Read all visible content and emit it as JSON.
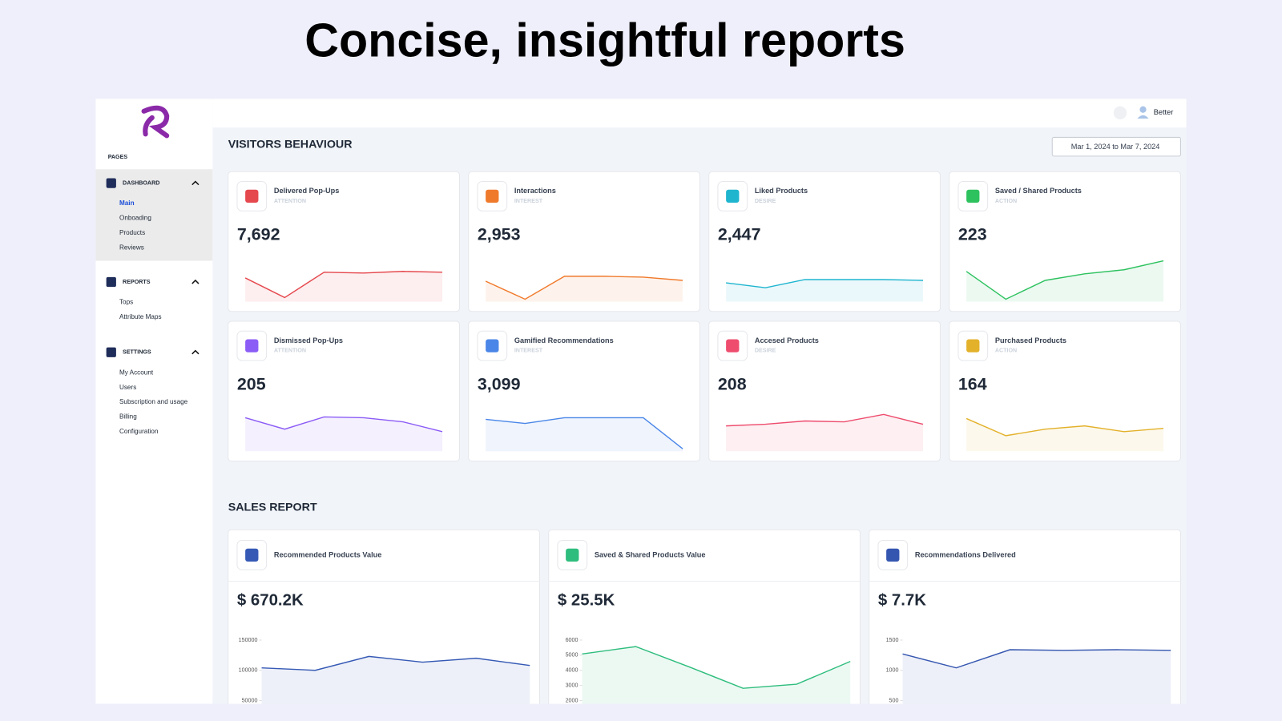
{
  "headline": "Concise, insightful reports",
  "sidebar": {
    "pages_label": "PAGES",
    "sections": [
      {
        "title": "DASHBOARD",
        "items": [
          "Main",
          "Onboading",
          "Products",
          "Reviews"
        ]
      },
      {
        "title": "REPORTS",
        "items": [
          "Tops",
          "Attribute Maps"
        ]
      },
      {
        "title": "SETTINGS",
        "items": [
          "My Account",
          "Users",
          "Subscription and usage",
          "Billing",
          "Configuration"
        ]
      }
    ]
  },
  "topbar": {
    "user": "Better"
  },
  "visitors": {
    "title": "VISITORS BEHAVIOUR",
    "date_range": "Mar 1, 2024 to Mar 7, 2024",
    "cards": [
      {
        "title": "Delivered Pop-Ups",
        "stage": "ATTENTION",
        "value": "7,692",
        "color": "#e5484d",
        "sparkline": [
          29,
          5,
          36,
          35,
          37,
          36
        ]
      },
      {
        "title": "Interactions",
        "stage": "INTEREST",
        "value": "2,953",
        "color": "#f07a2c",
        "sparkline": [
          25,
          3,
          31,
          31,
          30,
          26
        ]
      },
      {
        "title": "Liked Products",
        "stage": "DESIRE",
        "value": "2,447",
        "color": "#1fb5cf",
        "sparkline": [
          23,
          17,
          27,
          27,
          27,
          26
        ]
      },
      {
        "title": "Saved / Shared Products",
        "stage": "ACTION",
        "value": "223",
        "color": "#2ec25f",
        "sparkline": [
          37,
          3,
          26,
          34,
          39,
          50
        ]
      },
      {
        "title": "Dismissed Pop-Ups",
        "stage": "ATTENTION",
        "value": "205",
        "color": "#8b5cf6",
        "sparkline": [
          41,
          27,
          42,
          41,
          36,
          24
        ]
      },
      {
        "title": "Gamified Recommendations",
        "stage": "INTEREST",
        "value": "3,099",
        "color": "#4a86e8",
        "sparkline": [
          39,
          34,
          41,
          41,
          41,
          3
        ]
      },
      {
        "title": "Accesed Products",
        "stage": "DESIRE",
        "value": "208",
        "color": "#ee4d6e",
        "sparkline": [
          31,
          33,
          37,
          36,
          45,
          33
        ]
      },
      {
        "title": "Purchased Products",
        "stage": "ACTION",
        "value": "164",
        "color": "#e3b12a",
        "sparkline": [
          40,
          19,
          27,
          31,
          24,
          28
        ]
      }
    ]
  },
  "sales": {
    "title": "SALES REPORT",
    "cards": [
      {
        "title": "Recommended Products Value",
        "value": "$ 670.2K",
        "color": "#3559b5",
        "chart": {
          "type": "line",
          "ylim": [
            50000,
            150000
          ],
          "yticks": [
            50000,
            100000,
            150000
          ],
          "values": [
            104000,
            100000,
            123000,
            113500,
            120000,
            108000
          ]
        }
      },
      {
        "title": "Saved & Shared Products Value",
        "value": "$ 25.5K",
        "color": "#2ebd7d",
        "chart": {
          "type": "line",
          "ylim": [
            2000,
            6000
          ],
          "yticks": [
            2000,
            3000,
            4000,
            5000,
            6000
          ],
          "values": [
            5080,
            5570,
            4220,
            2810,
            3080,
            4590
          ]
        }
      },
      {
        "title": "Recommendations Delivered",
        "value": "$ 7.7K",
        "color": "#3556b0",
        "chart": {
          "type": "line",
          "ylim": [
            500,
            1500
          ],
          "yticks": [
            500,
            1000,
            1500
          ],
          "values": [
            1270,
            1040,
            1340,
            1330,
            1340,
            1330
          ]
        }
      }
    ]
  }
}
